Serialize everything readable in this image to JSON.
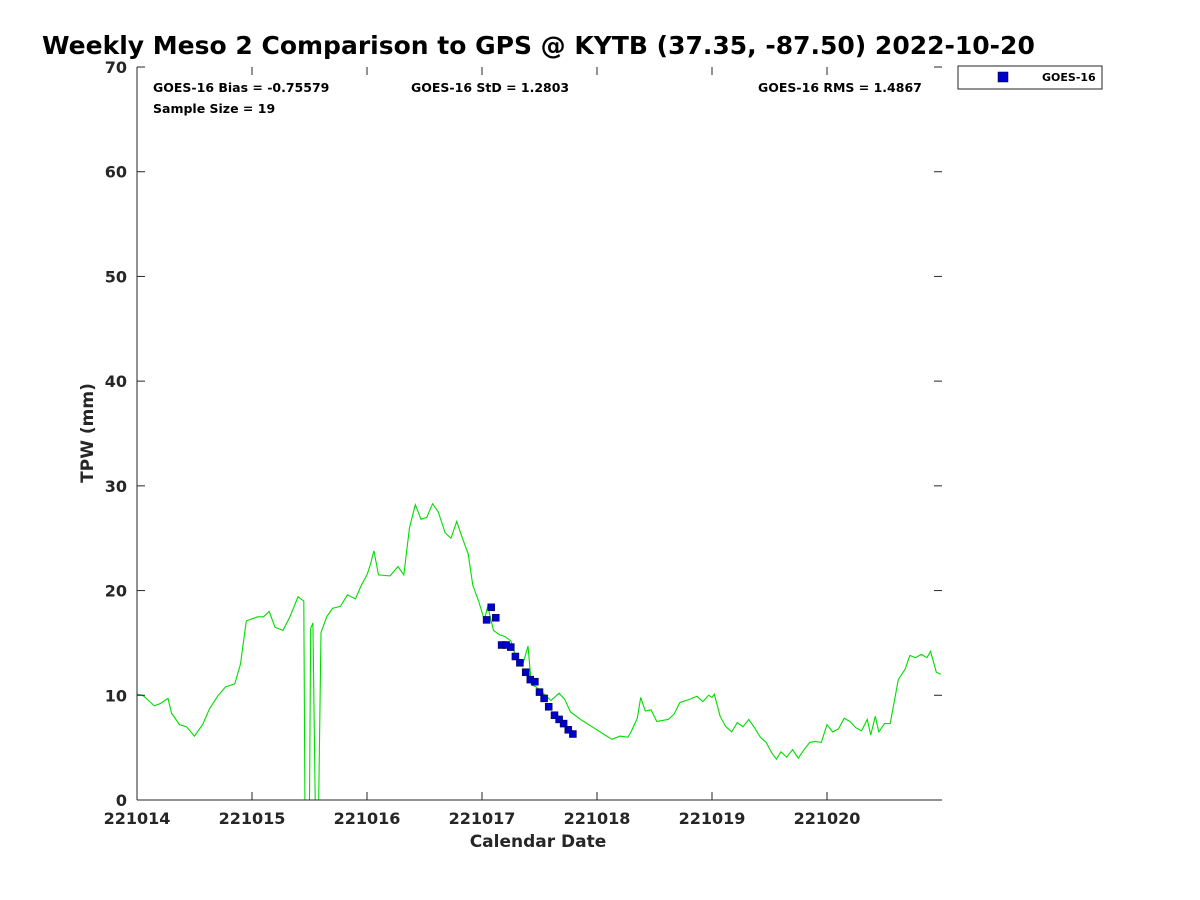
{
  "chart_data": {
    "type": "scatter",
    "title": "Weekly Meso 2 Comparison to GPS @ KYTB (37.35, -87.50) 2022-10-20",
    "xlabel": "Calendar Date",
    "ylabel": "TPW (mm)",
    "xlim": [
      221014,
      221021
    ],
    "ylim": [
      0,
      70
    ],
    "x_ticks": [
      221014,
      221015,
      221016,
      221017,
      221018,
      221019,
      221020
    ],
    "x_tick_labels": [
      "221014",
      "221015",
      "221016",
      "221017",
      "221018",
      "221019",
      "221020"
    ],
    "y_ticks": [
      0,
      10,
      20,
      30,
      40,
      50,
      60,
      70
    ],
    "y_tick_labels": [
      "0",
      "10",
      "20",
      "30",
      "40",
      "50",
      "60",
      "70"
    ],
    "grid": false,
    "legend_position": "top-right, outside plot",
    "stats": {
      "bias": "GOES-16 Bias = -0.75579",
      "std": "GOES-16 StD = 1.2803",
      "rms": "GOES-16 RMS = 1.4867",
      "sample": "Sample Size = 19"
    },
    "series": [
      {
        "name": "GOES-16",
        "kind": "scatter",
        "marker": "square",
        "color": "#0000cd",
        "points": [
          [
            221017.04,
            17.2
          ],
          [
            221017.08,
            18.4
          ],
          [
            221017.12,
            17.4
          ],
          [
            221017.17,
            14.8
          ],
          [
            221017.21,
            14.8
          ],
          [
            221017.25,
            14.6
          ],
          [
            221017.29,
            13.7
          ],
          [
            221017.33,
            13.1
          ],
          [
            221017.38,
            12.2
          ],
          [
            221017.42,
            11.5
          ],
          [
            221017.46,
            11.3
          ],
          [
            221017.5,
            10.3
          ],
          [
            221017.54,
            9.7
          ],
          [
            221017.58,
            8.9
          ],
          [
            221017.63,
            8.1
          ],
          [
            221017.67,
            7.7
          ],
          [
            221017.71,
            7.3
          ],
          [
            221017.75,
            6.7
          ],
          [
            221017.79,
            6.3
          ]
        ]
      },
      {
        "name": "",
        "kind": "line",
        "color": "#00dd00",
        "points": [
          [
            221014.0,
            10.1
          ],
          [
            221014.05,
            10.0
          ],
          [
            221014.1,
            9.5
          ],
          [
            221014.15,
            9.0
          ],
          [
            221014.2,
            9.2
          ],
          [
            221014.27,
            9.7
          ],
          [
            221014.3,
            8.3
          ],
          [
            221014.37,
            7.2
          ],
          [
            221014.43,
            7.0
          ],
          [
            221014.5,
            6.1
          ],
          [
            221014.57,
            7.2
          ],
          [
            221014.63,
            8.7
          ],
          [
            221014.7,
            9.9
          ],
          [
            221014.77,
            10.8
          ],
          [
            221014.85,
            11.1
          ],
          [
            221014.9,
            13.0
          ],
          [
            221014.95,
            17.1
          ],
          [
            221015.05,
            17.5
          ],
          [
            221015.1,
            17.5
          ],
          [
            221015.15,
            18.0
          ],
          [
            221015.2,
            16.5
          ],
          [
            221015.27,
            16.2
          ],
          [
            221015.33,
            17.5
          ],
          [
            221015.4,
            19.4
          ],
          [
            221015.45,
            19.0
          ],
          [
            221015.46,
            0.0
          ],
          [
            221015.5,
            0.0
          ],
          [
            221015.51,
            16.4
          ],
          [
            221015.53,
            16.9
          ],
          [
            221015.55,
            0.0
          ],
          [
            221015.58,
            0.0
          ],
          [
            221015.6,
            16.0
          ],
          [
            221015.65,
            17.5
          ],
          [
            221015.7,
            18.3
          ],
          [
            221015.77,
            18.5
          ],
          [
            221015.83,
            19.6
          ],
          [
            221015.9,
            19.2
          ],
          [
            221015.95,
            20.5
          ],
          [
            221016.0,
            21.5
          ],
          [
            221016.03,
            22.5
          ],
          [
            221016.06,
            23.8
          ],
          [
            221016.1,
            21.5
          ],
          [
            221016.2,
            21.4
          ],
          [
            221016.27,
            22.3
          ],
          [
            221016.32,
            21.5
          ],
          [
            221016.37,
            26.0
          ],
          [
            221016.42,
            28.2
          ],
          [
            221016.47,
            26.8
          ],
          [
            221016.52,
            27.0
          ],
          [
            221016.57,
            28.3
          ],
          [
            221016.62,
            27.5
          ],
          [
            221016.68,
            25.5
          ],
          [
            221016.73,
            25.0
          ],
          [
            221016.78,
            26.6
          ],
          [
            221016.83,
            25.0
          ],
          [
            221016.88,
            23.5
          ],
          [
            221016.92,
            20.5
          ],
          [
            221016.97,
            19.0
          ],
          [
            221017.02,
            17.2
          ],
          [
            221017.05,
            18.5
          ],
          [
            221017.1,
            16.2
          ],
          [
            221017.15,
            15.8
          ],
          [
            221017.2,
            15.6
          ],
          [
            221017.25,
            15.2
          ],
          [
            221017.3,
            13.5
          ],
          [
            221017.35,
            12.8
          ],
          [
            221017.4,
            14.7
          ],
          [
            221017.43,
            11.0
          ],
          [
            221017.47,
            10.8
          ],
          [
            221017.52,
            10.3
          ],
          [
            221017.6,
            9.5
          ],
          [
            221017.67,
            10.2
          ],
          [
            221017.72,
            9.6
          ],
          [
            221017.77,
            8.4
          ],
          [
            221017.87,
            7.6
          ],
          [
            221017.97,
            6.9
          ],
          [
            221018.07,
            6.2
          ],
          [
            221018.13,
            5.8
          ],
          [
            221018.2,
            6.1
          ],
          [
            221018.27,
            6.0
          ],
          [
            221018.3,
            6.6
          ],
          [
            221018.35,
            7.8
          ],
          [
            221018.38,
            9.8
          ],
          [
            221018.42,
            8.5
          ],
          [
            221018.47,
            8.6
          ],
          [
            221018.52,
            7.5
          ],
          [
            221018.57,
            7.6
          ],
          [
            221018.62,
            7.7
          ],
          [
            221018.67,
            8.2
          ],
          [
            221018.72,
            9.3
          ],
          [
            221018.8,
            9.6
          ],
          [
            221018.87,
            9.9
          ],
          [
            221018.92,
            9.4
          ],
          [
            221018.97,
            10.0
          ],
          [
            221019.0,
            9.8
          ],
          [
            221019.02,
            10.1
          ],
          [
            221019.07,
            8.0
          ],
          [
            221019.12,
            7.0
          ],
          [
            221019.17,
            6.5
          ],
          [
            221019.22,
            7.4
          ],
          [
            221019.27,
            7.0
          ],
          [
            221019.32,
            7.7
          ],
          [
            221019.37,
            6.9
          ],
          [
            221019.42,
            6.0
          ],
          [
            221019.47,
            5.5
          ],
          [
            221019.52,
            4.5
          ],
          [
            221019.56,
            3.9
          ],
          [
            221019.6,
            4.6
          ],
          [
            221019.65,
            4.1
          ],
          [
            221019.7,
            4.8
          ],
          [
            221019.75,
            4.0
          ],
          [
            221019.8,
            4.8
          ],
          [
            221019.85,
            5.5
          ],
          [
            221019.9,
            5.6
          ],
          [
            221019.95,
            5.5
          ],
          [
            221020.0,
            7.2
          ],
          [
            221020.05,
            6.5
          ],
          [
            221020.1,
            6.8
          ],
          [
            221020.15,
            7.8
          ],
          [
            221020.2,
            7.5
          ],
          [
            221020.25,
            6.9
          ],
          [
            221020.3,
            6.6
          ],
          [
            221020.35,
            7.7
          ],
          [
            221020.38,
            6.2
          ],
          [
            221020.42,
            8.0
          ],
          [
            221020.45,
            6.5
          ],
          [
            221020.5,
            7.3
          ],
          [
            221020.55,
            7.3
          ],
          [
            221020.62,
            11.5
          ],
          [
            221020.68,
            12.5
          ],
          [
            221020.72,
            13.8
          ],
          [
            221020.77,
            13.6
          ],
          [
            221020.82,
            13.9
          ],
          [
            221020.87,
            13.6
          ],
          [
            221020.9,
            14.2
          ],
          [
            221020.95,
            12.2
          ],
          [
            221020.99,
            12.0
          ]
        ]
      }
    ]
  }
}
